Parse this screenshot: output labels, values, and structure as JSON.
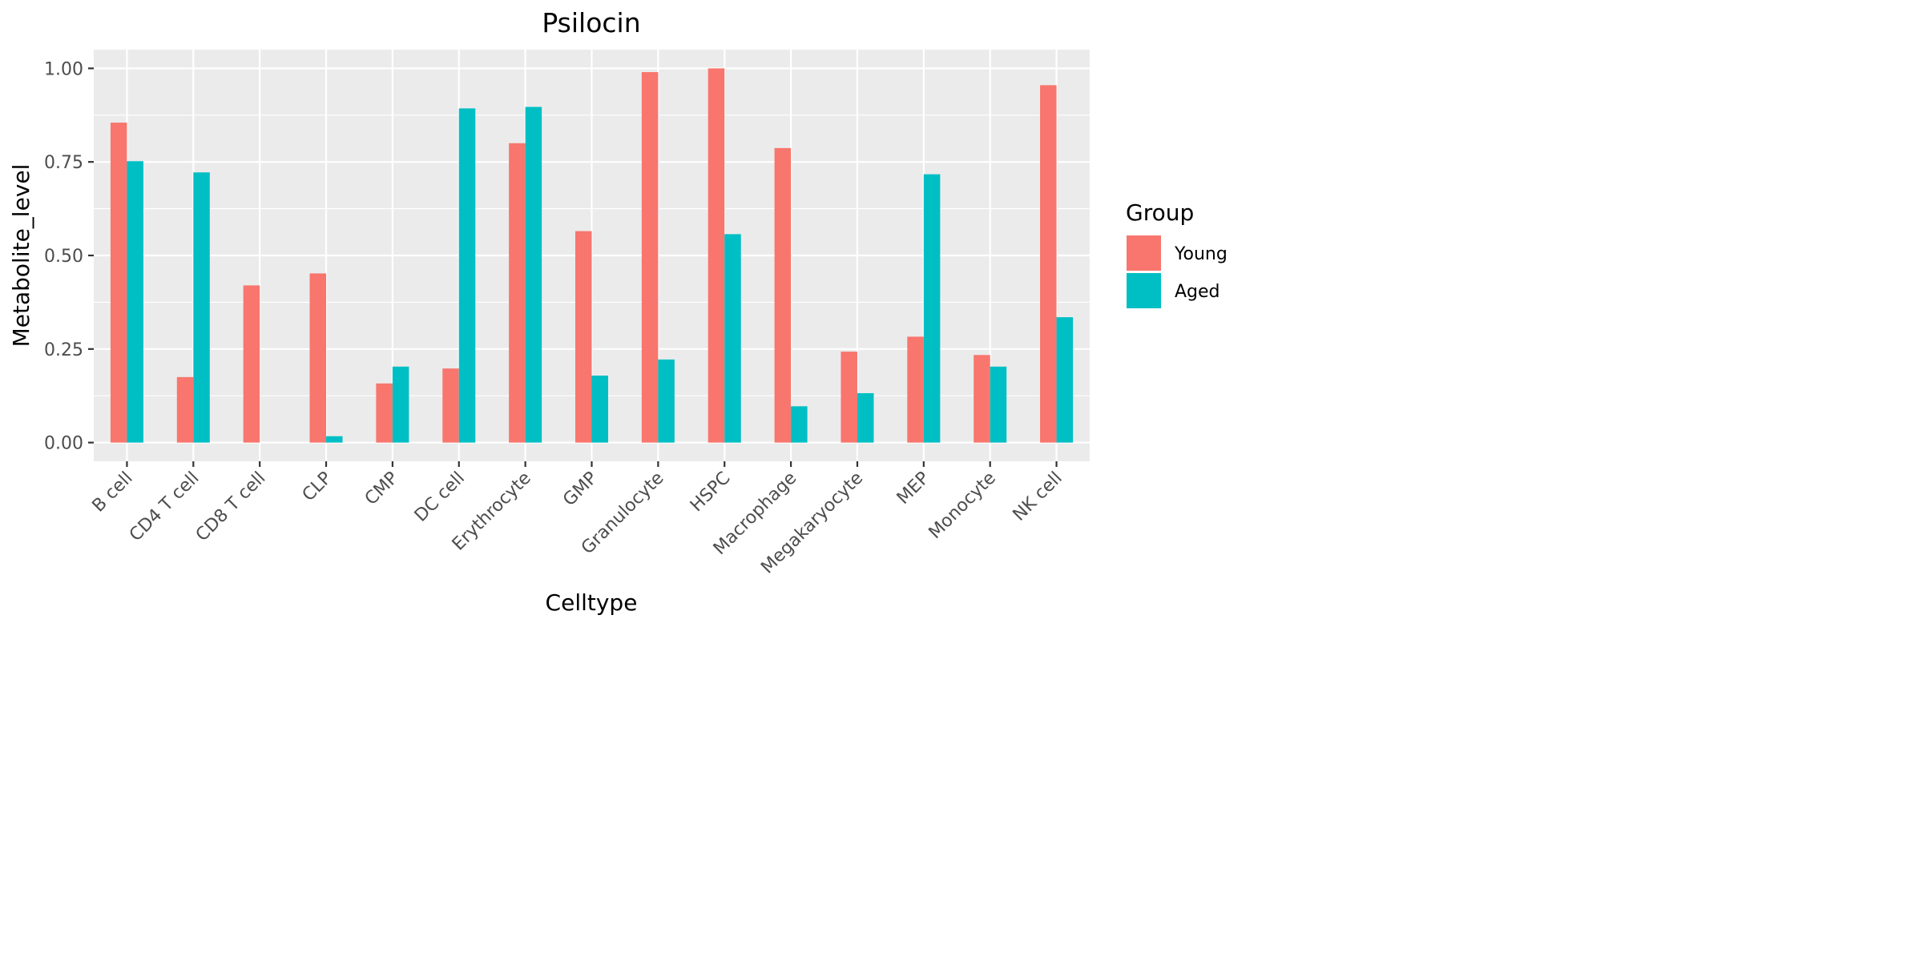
{
  "chart_data": {
    "type": "bar",
    "title": "Psilocin",
    "xlabel": "Celltype",
    "ylabel": "Metabolite_level",
    "ylim": [
      -0.05,
      1.05
    ],
    "yticks": [
      0.0,
      0.25,
      0.5,
      0.75,
      1.0
    ],
    "ytick_labels": [
      "0.00",
      "0.25",
      "0.50",
      "0.75",
      "1.00"
    ],
    "grid": true,
    "legend": {
      "title": "Group",
      "position": "right"
    },
    "categories": [
      "B cell",
      "CD4 T cell",
      "CD8 T cell",
      "CLP",
      "CMP",
      "DC cell",
      "Erythrocyte",
      "GMP",
      "Granulocyte",
      "HSPC",
      "Macrophage",
      "Megakaryocyte",
      "MEP",
      "Monocyte",
      "NK cell"
    ],
    "series": [
      {
        "name": "Young",
        "color": "#F8766D",
        "values": [
          0.855,
          0.175,
          0.42,
          0.452,
          0.158,
          0.198,
          0.8,
          0.565,
          0.99,
          1.0,
          0.787,
          0.243,
          0.283,
          0.234,
          0.955
        ]
      },
      {
        "name": "Aged",
        "color": "#00BFC4",
        "values": [
          0.752,
          0.722,
          0.0,
          0.017,
          0.203,
          0.893,
          0.897,
          0.179,
          0.222,
          0.557,
          0.097,
          0.132,
          0.717,
          0.203,
          0.335
        ]
      }
    ],
    "panel_background": "#EBEBEB",
    "grid_color": "#FFFFFF"
  }
}
